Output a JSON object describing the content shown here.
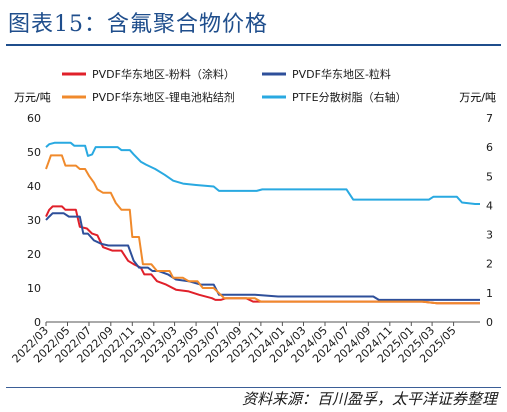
{
  "header": {
    "title": "图表15：含氟聚合物价格"
  },
  "footer": {
    "source": "资料来源：百川盈孚，太平洋证券整理"
  },
  "chart_data": {
    "type": "line",
    "title": "",
    "ylabel_left": "万元/吨",
    "ylabel_right": "万元/吨",
    "ylim_left": [
      0,
      60
    ],
    "ylim_right": [
      0,
      7
    ],
    "yticks_left": [
      "0",
      "10",
      "20",
      "30",
      "40",
      "50",
      "60"
    ],
    "yticks_right": [
      "0",
      "1",
      "2",
      "3",
      "4",
      "5",
      "6",
      "7"
    ],
    "xlim": [
      "2022-03-01",
      "2025-07-15"
    ],
    "xticks": [
      "2022/03",
      "2022/05",
      "2022/07",
      "2022/09",
      "2022/11",
      "2023/01",
      "2023/03",
      "2023/05",
      "2023/07",
      "2023/09",
      "2023/11",
      "2024/01",
      "2024/03",
      "2024/05",
      "2024/07",
      "2024/09",
      "2024/11",
      "2025/01",
      "2025/03",
      "2025/05"
    ],
    "grid": false,
    "legend_position": "top",
    "series": [
      {
        "name": "PVDF华东地区-粉料（涂料）",
        "color": "#e0202a",
        "axis": "left",
        "points": [
          [
            "2022-03-01",
            31
          ],
          [
            "2022-03-10",
            33
          ],
          [
            "2022-03-20",
            34
          ],
          [
            "2022-04-15",
            34
          ],
          [
            "2022-04-25",
            33
          ],
          [
            "2022-05-25",
            33
          ],
          [
            "2022-06-05",
            28
          ],
          [
            "2022-06-25",
            27.5
          ],
          [
            "2022-07-10",
            26
          ],
          [
            "2022-07-25",
            25.5
          ],
          [
            "2022-08-10",
            22
          ],
          [
            "2022-09-05",
            21
          ],
          [
            "2022-10-01",
            21
          ],
          [
            "2022-10-20",
            18
          ],
          [
            "2022-11-05",
            17
          ],
          [
            "2022-11-25",
            16
          ],
          [
            "2022-12-05",
            14
          ],
          [
            "2022-12-25",
            14
          ],
          [
            "2023-01-10",
            12
          ],
          [
            "2023-02-05",
            11
          ],
          [
            "2023-03-05",
            9.5
          ],
          [
            "2023-04-10",
            9
          ],
          [
            "2023-05-10",
            8
          ],
          [
            "2023-06-15",
            7
          ],
          [
            "2023-06-25",
            6.5
          ],
          [
            "2023-07-10",
            6.5
          ],
          [
            "2023-07-25",
            7
          ],
          [
            "2023-09-20",
            7
          ],
          [
            "2023-10-10",
            6
          ],
          [
            "2025-02-01",
            6
          ],
          [
            "2025-03-15",
            5.5
          ],
          [
            "2025-07-15",
            5.5
          ]
        ]
      },
      {
        "name": "PVDF华东地区-粒料",
        "color": "#2e4f9a",
        "axis": "left",
        "points": [
          [
            "2022-03-01",
            30
          ],
          [
            "2022-03-10",
            31
          ],
          [
            "2022-03-20",
            32
          ],
          [
            "2022-04-20",
            32
          ],
          [
            "2022-05-05",
            31
          ],
          [
            "2022-06-05",
            31
          ],
          [
            "2022-06-15",
            26
          ],
          [
            "2022-06-28",
            26
          ],
          [
            "2022-07-15",
            24
          ],
          [
            "2022-08-05",
            23
          ],
          [
            "2022-08-25",
            22.5
          ],
          [
            "2022-10-20",
            22.5
          ],
          [
            "2022-11-05",
            18
          ],
          [
            "2022-11-20",
            16
          ],
          [
            "2022-12-15",
            16
          ],
          [
            "2022-12-28",
            15
          ],
          [
            "2023-01-15",
            15
          ],
          [
            "2023-02-10",
            14
          ],
          [
            "2023-03-05",
            12.5
          ],
          [
            "2023-04-10",
            12
          ],
          [
            "2023-05-15",
            11
          ],
          [
            "2023-06-20",
            11
          ],
          [
            "2023-07-05",
            8
          ],
          [
            "2023-08-15",
            8
          ],
          [
            "2023-09-05",
            8
          ],
          [
            "2023-10-15",
            8
          ],
          [
            "2023-12-20",
            7.5
          ],
          [
            "2024-09-15",
            7.5
          ],
          [
            "2024-10-01",
            6.5
          ],
          [
            "2025-07-15",
            6.5
          ]
        ]
      },
      {
        "name": "PVDF华东地区-锂电池粘结剂",
        "color": "#f08a2c",
        "axis": "left",
        "points": [
          [
            "2022-03-01",
            45
          ],
          [
            "2022-03-08",
            47
          ],
          [
            "2022-03-15",
            49
          ],
          [
            "2022-04-15",
            49
          ],
          [
            "2022-04-25",
            46
          ],
          [
            "2022-05-25",
            46
          ],
          [
            "2022-06-05",
            45
          ],
          [
            "2022-06-20",
            45
          ],
          [
            "2022-07-01",
            43
          ],
          [
            "2022-07-15",
            41
          ],
          [
            "2022-07-25",
            39
          ],
          [
            "2022-08-10",
            38
          ],
          [
            "2022-09-01",
            38
          ],
          [
            "2022-09-15",
            35
          ],
          [
            "2022-10-01",
            33
          ],
          [
            "2022-10-25",
            33
          ],
          [
            "2022-11-01",
            25
          ],
          [
            "2022-11-20",
            25
          ],
          [
            "2022-12-01",
            17
          ],
          [
            "2022-12-25",
            17
          ],
          [
            "2023-01-10",
            15
          ],
          [
            "2023-02-15",
            15
          ],
          [
            "2023-02-25",
            13
          ],
          [
            "2023-03-25",
            13
          ],
          [
            "2023-04-10",
            12
          ],
          [
            "2023-05-05",
            12
          ],
          [
            "2023-05-20",
            10
          ],
          [
            "2023-06-20",
            10
          ],
          [
            "2023-07-10",
            8
          ],
          [
            "2023-07-20",
            7
          ],
          [
            "2023-08-20",
            7
          ],
          [
            "2023-09-05",
            7
          ],
          [
            "2023-10-15",
            7
          ],
          [
            "2023-11-01",
            6
          ],
          [
            "2025-02-01",
            6
          ],
          [
            "2025-03-15",
            5.5
          ],
          [
            "2025-07-15",
            5.5
          ]
        ]
      },
      {
        "name": "PTFE分散树脂（右轴）",
        "color": "#29a9e1",
        "axis": "right",
        "points": [
          [
            "2022-03-01",
            6.0
          ],
          [
            "2022-03-10",
            6.1
          ],
          [
            "2022-03-25",
            6.15
          ],
          [
            "2022-05-10",
            6.15
          ],
          [
            "2022-05-20",
            6.05
          ],
          [
            "2022-06-20",
            6.05
          ],
          [
            "2022-06-28",
            5.7
          ],
          [
            "2022-07-10",
            5.75
          ],
          [
            "2022-07-20",
            6.0
          ],
          [
            "2022-09-20",
            6.0
          ],
          [
            "2022-10-01",
            5.9
          ],
          [
            "2022-10-25",
            5.9
          ],
          [
            "2022-11-05",
            5.75
          ],
          [
            "2022-11-25",
            5.5
          ],
          [
            "2022-12-10",
            5.4
          ],
          [
            "2023-01-05",
            5.25
          ],
          [
            "2023-02-01",
            5.05
          ],
          [
            "2023-02-25",
            4.85
          ],
          [
            "2023-03-25",
            4.75
          ],
          [
            "2023-05-01",
            4.7
          ],
          [
            "2023-06-20",
            4.65
          ],
          [
            "2023-07-05",
            4.5
          ],
          [
            "2023-10-20",
            4.5
          ],
          [
            "2023-11-05",
            4.55
          ],
          [
            "2024-07-01",
            4.55
          ],
          [
            "2024-07-20",
            4.2
          ],
          [
            "2025-02-20",
            4.2
          ],
          [
            "2025-03-05",
            4.3
          ],
          [
            "2025-05-10",
            4.3
          ],
          [
            "2025-05-25",
            4.1
          ],
          [
            "2025-07-01",
            4.05
          ],
          [
            "2025-07-15",
            4.05
          ]
        ]
      }
    ]
  }
}
